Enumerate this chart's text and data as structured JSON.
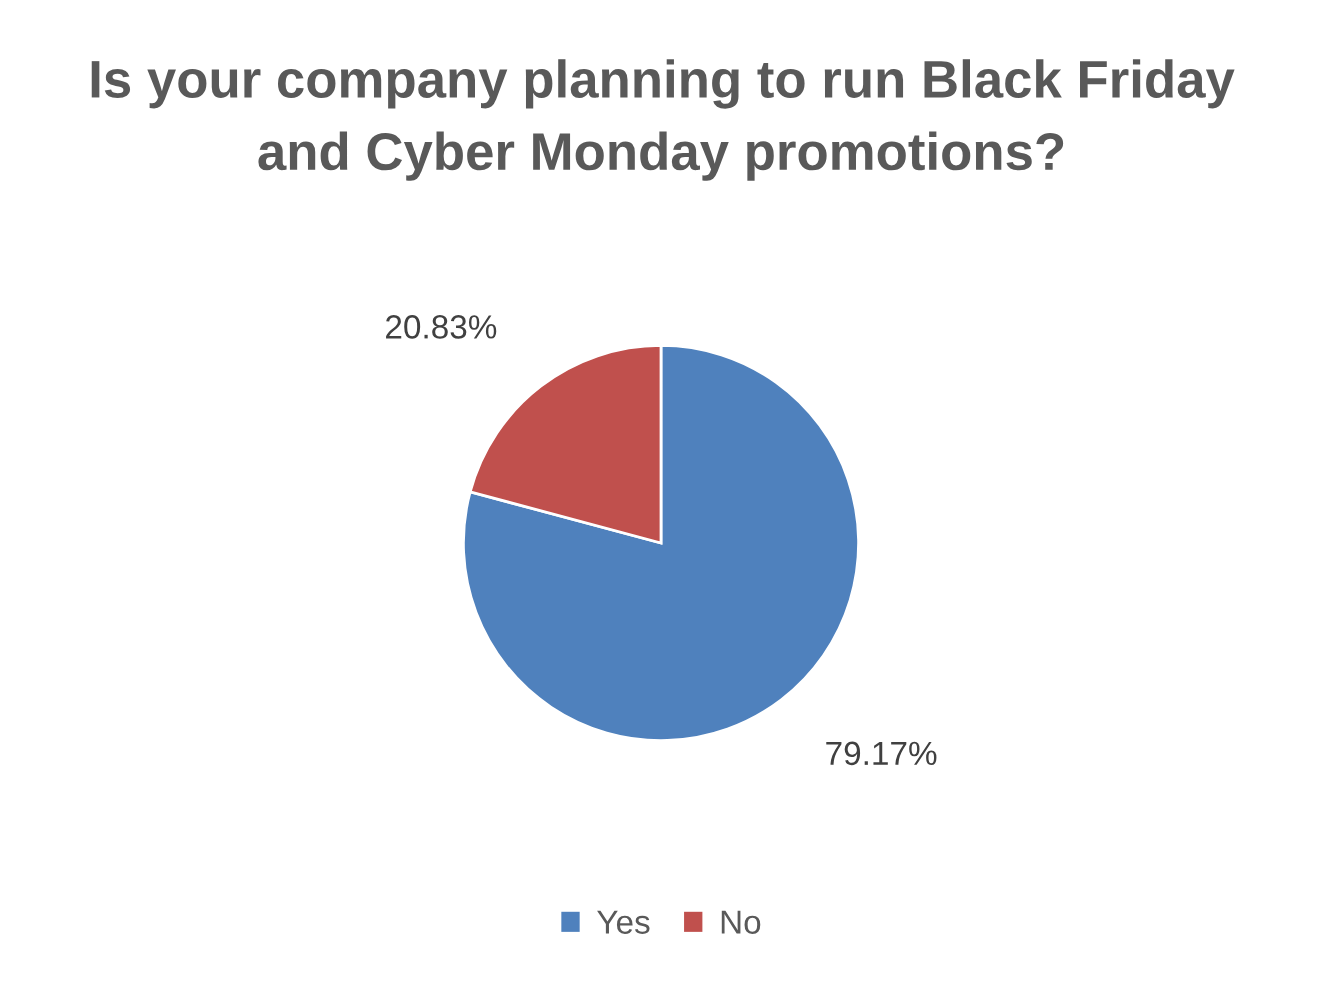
{
  "chart_data": {
    "type": "pie",
    "title": "Is your company planning to run Black Friday and Cyber Monday promotions?",
    "categories": [
      "Yes",
      "No"
    ],
    "values": [
      79.17,
      20.83
    ],
    "colors": [
      "#4f81bd",
      "#c0504d"
    ],
    "value_labels": [
      "79.17%",
      "20.83%"
    ],
    "legend": "bottom"
  }
}
